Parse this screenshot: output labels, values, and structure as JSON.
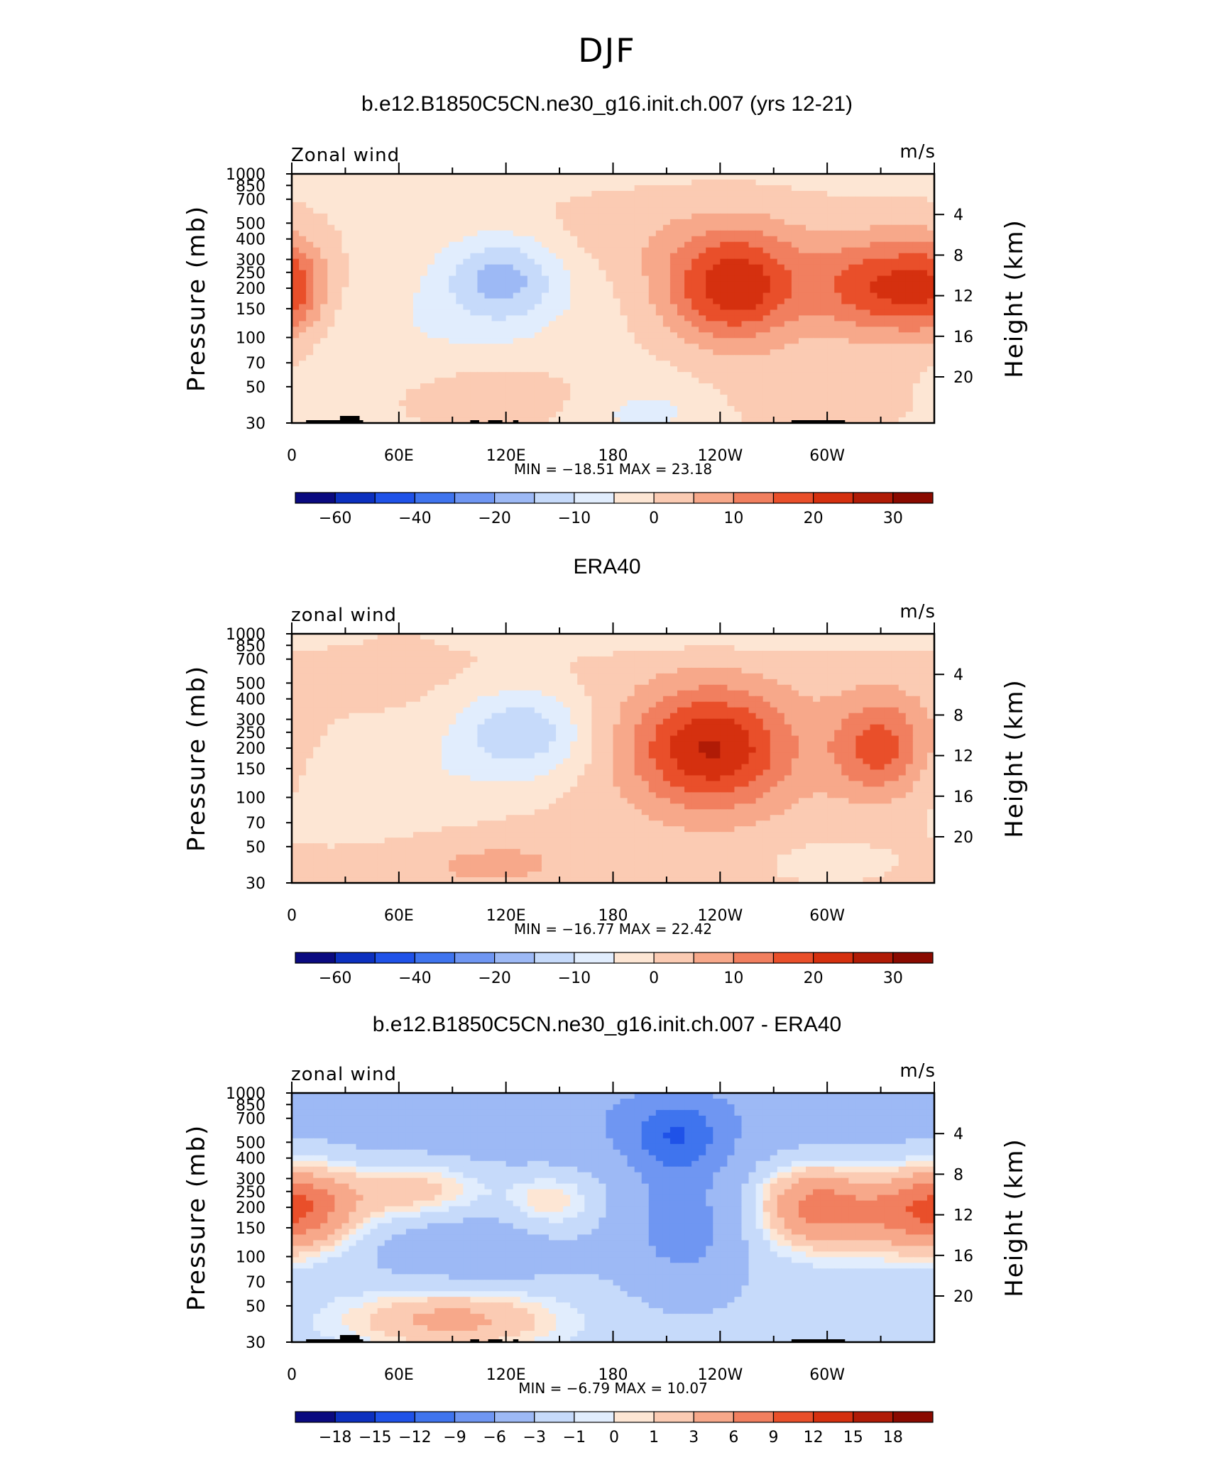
{
  "figure": {
    "title": "DJF"
  },
  "chart_data": [
    {
      "type": "heatmap",
      "title": "b.e12.B1850C5CN.ne30_g16.init.ch.007 (yrs 12-21)",
      "left_label": "Zonal wind",
      "right_label": "m/s",
      "ylabel": "Pressure (mb)",
      "y2label": "Height (km)",
      "xticks": [
        "0",
        "60E",
        "120E",
        "180",
        "120W",
        "60W"
      ],
      "xlim": [
        0,
        360
      ],
      "yticks": [
        "30",
        "50",
        "70",
        "100",
        "150",
        "200",
        "250",
        "300",
        "400",
        "500",
        "700",
        "850",
        "1000"
      ],
      "ylim": [
        1000,
        30
      ],
      "y2ticks": [
        "20",
        "16",
        "12",
        "8",
        "4"
      ],
      "stats": "MIN =  −18.51   MAX =   23.18",
      "min": -18.51,
      "max": 23.18,
      "colorbar": {
        "labels": [
          "−60",
          "−40",
          "−20",
          "−10",
          "0",
          "10",
          "20",
          "30"
        ],
        "levels": [
          -70,
          -60,
          -50,
          -40,
          -30,
          -20,
          -15,
          -10,
          -5,
          0,
          5,
          10,
          15,
          20,
          25,
          30,
          40
        ]
      }
    },
    {
      "type": "heatmap",
      "title": "ERA40",
      "left_label": "zonal wind",
      "right_label": "m/s",
      "ylabel": "Pressure (mb)",
      "y2label": "Height (km)",
      "xticks": [
        "0",
        "60E",
        "120E",
        "180",
        "120W",
        "60W"
      ],
      "xlim": [
        0,
        360
      ],
      "yticks": [
        "30",
        "50",
        "70",
        "100",
        "150",
        "200",
        "250",
        "300",
        "400",
        "500",
        "700",
        "850",
        "1000"
      ],
      "ylim": [
        1000,
        30
      ],
      "y2ticks": [
        "20",
        "16",
        "12",
        "8",
        "4"
      ],
      "stats": "MIN =  −16.77   MAX =   22.42",
      "min": -16.77,
      "max": 22.42,
      "colorbar": {
        "labels": [
          "−60",
          "−40",
          "−20",
          "−10",
          "0",
          "10",
          "20",
          "30"
        ],
        "levels": [
          -70,
          -60,
          -50,
          -40,
          -30,
          -20,
          -15,
          -10,
          -5,
          0,
          5,
          10,
          15,
          20,
          25,
          30,
          40
        ]
      }
    },
    {
      "type": "heatmap",
      "title": "b.e12.B1850C5CN.ne30_g16.init.ch.007 - ERA40",
      "left_label": "zonal wind",
      "right_label": "m/s",
      "ylabel": "Pressure (mb)",
      "y2label": "Height (km)",
      "xticks": [
        "0",
        "60E",
        "120E",
        "180",
        "120W",
        "60W"
      ],
      "xlim": [
        0,
        360
      ],
      "yticks": [
        "30",
        "50",
        "70",
        "100",
        "150",
        "200",
        "250",
        "300",
        "400",
        "500",
        "700",
        "850",
        "1000"
      ],
      "ylim": [
        1000,
        30
      ],
      "y2ticks": [
        "20",
        "16",
        "12",
        "8",
        "4"
      ],
      "stats": "MIN =   −6.79   MAX =   10.07",
      "min": -6.79,
      "max": 10.07,
      "colorbar": {
        "labels": [
          "−18",
          "−15",
          "−12",
          "−9",
          "−6",
          "−3",
          "−1",
          "0",
          "1",
          "3",
          "6",
          "9",
          "12",
          "15",
          "18"
        ],
        "levels": [
          -21,
          -18,
          -15,
          -12,
          -9,
          -6,
          -3,
          -1,
          0,
          1,
          3,
          6,
          9,
          12,
          15,
          18,
          21
        ]
      }
    }
  ],
  "colors": {
    "palette": [
      "#0a0a80",
      "#0c30bf",
      "#1f52e8",
      "#3f74ee",
      "#6f96f2",
      "#9db9f5",
      "#c6dafa",
      "#e1edfd",
      "#fde6d4",
      "#fbcbb3",
      "#f7a88a",
      "#f17f5f",
      "#e94f2a",
      "#d5300f",
      "#b01b06",
      "#8a0a00"
    ],
    "topography": "#000000",
    "frame": "#000000"
  }
}
